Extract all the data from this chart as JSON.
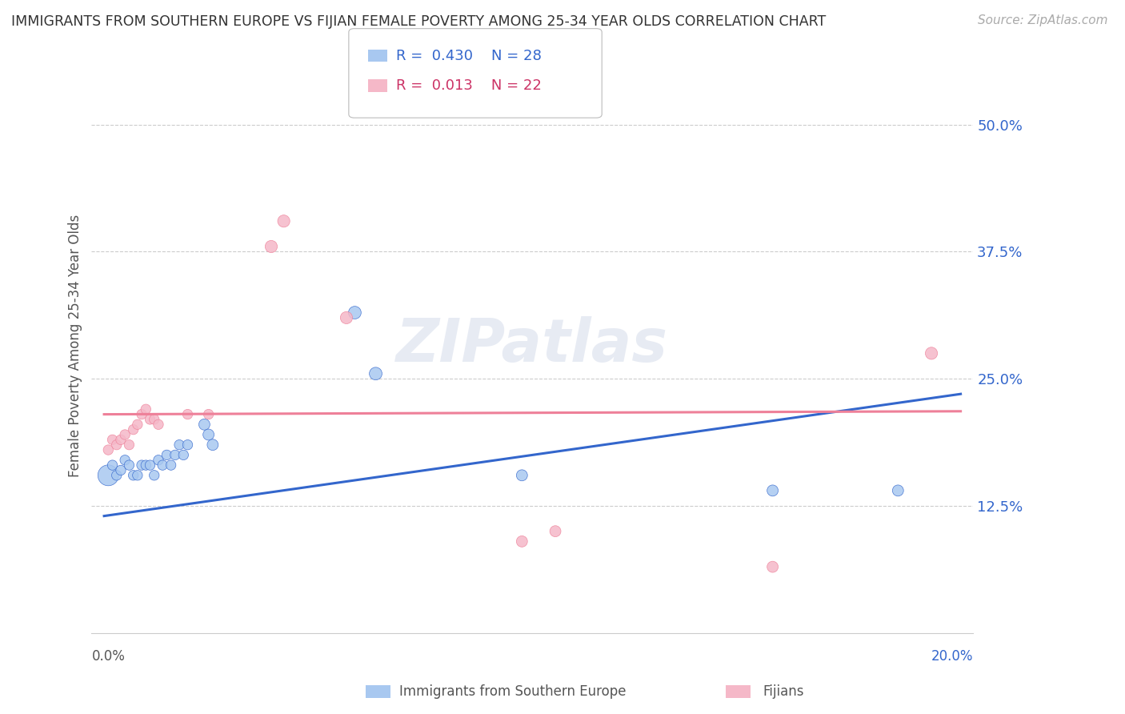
{
  "title": "IMMIGRANTS FROM SOUTHERN EUROPE VS FIJIAN FEMALE POVERTY AMONG 25-34 YEAR OLDS CORRELATION CHART",
  "source": "Source: ZipAtlas.com",
  "ylabel": "Female Poverty Among 25-34 Year Olds",
  "yticks": [
    0.125,
    0.25,
    0.375,
    0.5
  ],
  "ytick_labels": [
    "12.5%",
    "25.0%",
    "37.5%",
    "50.0%"
  ],
  "xlim": [
    -0.003,
    0.208
  ],
  "ylim": [
    0.0,
    0.565
  ],
  "color_blue": "#a8c8f0",
  "color_pink": "#f5b8c8",
  "line_blue": "#3366cc",
  "line_pink": "#ee8099",
  "watermark": "ZIPatlas",
  "blue_x": [
    0.001,
    0.002,
    0.003,
    0.004,
    0.005,
    0.006,
    0.007,
    0.008,
    0.009,
    0.01,
    0.011,
    0.012,
    0.013,
    0.014,
    0.015,
    0.016,
    0.017,
    0.018,
    0.019,
    0.02,
    0.024,
    0.025,
    0.026,
    0.06,
    0.065,
    0.1,
    0.16,
    0.19
  ],
  "blue_y": [
    0.155,
    0.165,
    0.155,
    0.16,
    0.17,
    0.165,
    0.155,
    0.155,
    0.165,
    0.165,
    0.165,
    0.155,
    0.17,
    0.165,
    0.175,
    0.165,
    0.175,
    0.185,
    0.175,
    0.185,
    0.205,
    0.195,
    0.185,
    0.315,
    0.255,
    0.155,
    0.14,
    0.14
  ],
  "pink_x": [
    0.001,
    0.002,
    0.003,
    0.004,
    0.005,
    0.006,
    0.007,
    0.008,
    0.009,
    0.01,
    0.011,
    0.012,
    0.013,
    0.02,
    0.025,
    0.04,
    0.043,
    0.058,
    0.1,
    0.108,
    0.16,
    0.198
  ],
  "pink_y": [
    0.18,
    0.19,
    0.185,
    0.19,
    0.195,
    0.185,
    0.2,
    0.205,
    0.215,
    0.22,
    0.21,
    0.21,
    0.205,
    0.215,
    0.215,
    0.38,
    0.405,
    0.31,
    0.09,
    0.1,
    0.065,
    0.275
  ],
  "blue_sizes": [
    350,
    80,
    80,
    80,
    80,
    80,
    80,
    80,
    80,
    80,
    80,
    80,
    80,
    80,
    80,
    80,
    80,
    80,
    80,
    80,
    100,
    100,
    100,
    130,
    130,
    100,
    100,
    100
  ],
  "pink_sizes": [
    80,
    80,
    80,
    80,
    80,
    80,
    80,
    80,
    80,
    80,
    80,
    80,
    80,
    80,
    80,
    120,
    120,
    120,
    100,
    100,
    100,
    120
  ],
  "grid_color": "#cccccc",
  "bg_color": "#ffffff",
  "legend_r1_color": "#3366cc",
  "legend_r2_color": "#cc3366"
}
